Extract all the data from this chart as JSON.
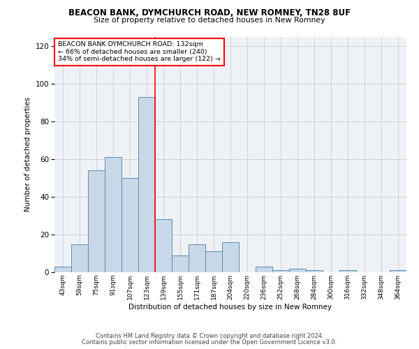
{
  "title1": "BEACON BANK, DYMCHURCH ROAD, NEW ROMNEY, TN28 8UF",
  "title2": "Size of property relative to detached houses in New Romney",
  "xlabel": "Distribution of detached houses by size in New Romney",
  "ylabel": "Number of detached properties",
  "categories": [
    "43sqm",
    "59sqm",
    "75sqm",
    "91sqm",
    "107sqm",
    "123sqm",
    "139sqm",
    "155sqm",
    "171sqm",
    "187sqm",
    "204sqm",
    "220sqm",
    "236sqm",
    "252sqm",
    "268sqm",
    "284sqm",
    "300sqm",
    "316sqm",
    "332sqm",
    "348sqm",
    "364sqm"
  ],
  "values": [
    3,
    15,
    54,
    61,
    50,
    93,
    28,
    9,
    15,
    11,
    16,
    0,
    3,
    1,
    2,
    1,
    0,
    1,
    0,
    0,
    1
  ],
  "bar_color": "#c8d8e8",
  "bar_edge_color": "#5b8db0",
  "bar_linewidth": 0.7,
  "vline_color": "red",
  "vline_linewidth": 1.2,
  "vline_x_index": 5.5,
  "ylim": [
    0,
    125
  ],
  "yticks": [
    0,
    20,
    40,
    60,
    80,
    100,
    120
  ],
  "annotation_text": "BEACON BANK DYMCHURCH ROAD: 132sqm\n← 66% of detached houses are smaller (240)\n34% of semi-detached houses are larger (122) →",
  "annotation_box_color": "white",
  "annotation_box_edge": "red",
  "footer1": "Contains HM Land Registry data © Crown copyright and database right 2024.",
  "footer2": "Contains public sector information licensed under the Open Government Licence v3.0.",
  "background_color": "#eef2f7",
  "grid_color": "#cccccc"
}
